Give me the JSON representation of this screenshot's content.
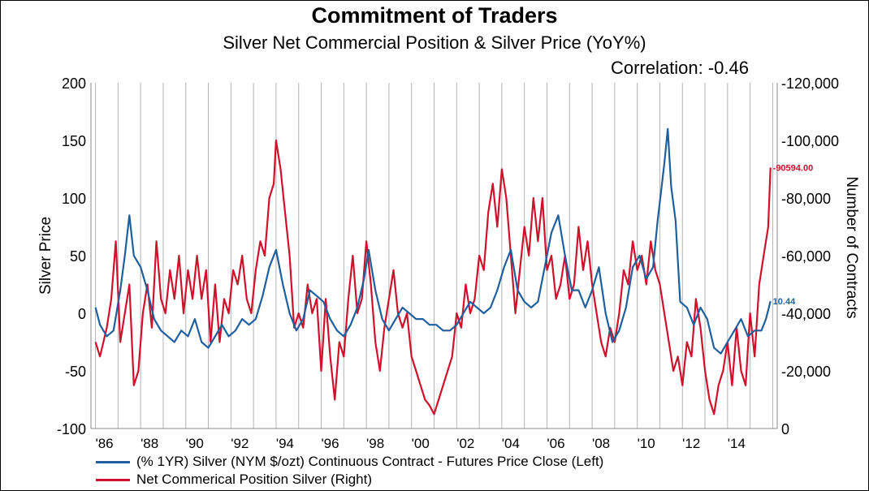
{
  "header": {
    "title": "Commitment of Traders",
    "subtitle": "Silver Net Commercial Position & Silver Price (YoY%)",
    "correlation": "Correlation: -0.46"
  },
  "chart_data": {
    "type": "line",
    "x_ticks": [
      "'86",
      "'88",
      "'90",
      "'92",
      "'94",
      "'96",
      "'98",
      "'00",
      "'02",
      "'04",
      "'06",
      "'08",
      "'10",
      "'12",
      "'14"
    ],
    "x_range": [
      1985.8,
      2016.2
    ],
    "y_left": {
      "label": "Silver Price",
      "min": -100,
      "max": 200,
      "ticks": [
        "-100",
        "-50",
        "0",
        "50",
        "100",
        "150",
        "200"
      ]
    },
    "y_right": {
      "label": "Number of Contracts",
      "min": 0,
      "max": -120000,
      "ticks": [
        "0",
        "-20,000",
        "-40,000",
        "-60,000",
        "-80,000",
        "-100,000",
        "-120,000"
      ]
    },
    "grid": "vertical",
    "series": [
      {
        "name": "(% 1YR) Silver (NYM $/ozt) Continuous Contract - Futures Price Close  (Left)",
        "axis": "left",
        "color": "#1f5f9e",
        "last_label": "10.44",
        "points": [
          [
            1986.0,
            5
          ],
          [
            1986.2,
            -10
          ],
          [
            1986.5,
            -20
          ],
          [
            1986.8,
            -15
          ],
          [
            1987.1,
            20
          ],
          [
            1987.3,
            50
          ],
          [
            1987.5,
            85
          ],
          [
            1987.7,
            50
          ],
          [
            1988.0,
            40
          ],
          [
            1988.3,
            20
          ],
          [
            1988.6,
            -5
          ],
          [
            1988.9,
            -15
          ],
          [
            1989.2,
            -20
          ],
          [
            1989.5,
            -25
          ],
          [
            1989.8,
            -15
          ],
          [
            1990.1,
            -20
          ],
          [
            1990.4,
            -5
          ],
          [
            1990.7,
            -25
          ],
          [
            1991.0,
            -30
          ],
          [
            1991.3,
            -20
          ],
          [
            1991.6,
            -10
          ],
          [
            1991.9,
            -20
          ],
          [
            1992.2,
            -15
          ],
          [
            1992.5,
            -5
          ],
          [
            1992.8,
            -10
          ],
          [
            1993.1,
            -5
          ],
          [
            1993.4,
            15
          ],
          [
            1993.7,
            40
          ],
          [
            1994.0,
            55
          ],
          [
            1994.3,
            25
          ],
          [
            1994.6,
            0
          ],
          [
            1994.9,
            -15
          ],
          [
            1995.2,
            -5
          ],
          [
            1995.5,
            20
          ],
          [
            1995.8,
            15
          ],
          [
            1996.1,
            10
          ],
          [
            1996.4,
            -5
          ],
          [
            1996.7,
            -15
          ],
          [
            1997.0,
            -20
          ],
          [
            1997.3,
            -10
          ],
          [
            1997.6,
            5
          ],
          [
            1997.9,
            30
          ],
          [
            1998.1,
            55
          ],
          [
            1998.4,
            20
          ],
          [
            1998.7,
            -5
          ],
          [
            1999.0,
            -15
          ],
          [
            1999.3,
            -5
          ],
          [
            1999.6,
            5
          ],
          [
            1999.9,
            0
          ],
          [
            2000.2,
            -5
          ],
          [
            2000.5,
            -5
          ],
          [
            2000.8,
            -10
          ],
          [
            2001.1,
            -10
          ],
          [
            2001.4,
            -15
          ],
          [
            2001.7,
            -15
          ],
          [
            2002.0,
            -10
          ],
          [
            2002.3,
            0
          ],
          [
            2002.6,
            10
          ],
          [
            2002.9,
            5
          ],
          [
            2003.2,
            0
          ],
          [
            2003.5,
            5
          ],
          [
            2003.8,
            20
          ],
          [
            2004.1,
            40
          ],
          [
            2004.4,
            55
          ],
          [
            2004.7,
            20
          ],
          [
            2005.0,
            10
          ],
          [
            2005.3,
            5
          ],
          [
            2005.6,
            10
          ],
          [
            2005.9,
            40
          ],
          [
            2006.2,
            70
          ],
          [
            2006.5,
            85
          ],
          [
            2006.8,
            50
          ],
          [
            2007.1,
            20
          ],
          [
            2007.4,
            20
          ],
          [
            2007.7,
            5
          ],
          [
            2008.0,
            20
          ],
          [
            2008.3,
            40
          ],
          [
            2008.6,
            0
          ],
          [
            2008.9,
            -25
          ],
          [
            2009.2,
            -15
          ],
          [
            2009.5,
            5
          ],
          [
            2009.8,
            40
          ],
          [
            2010.1,
            50
          ],
          [
            2010.4,
            30
          ],
          [
            2010.7,
            40
          ],
          [
            2010.9,
            80
          ],
          [
            2011.2,
            130
          ],
          [
            2011.35,
            160
          ],
          [
            2011.5,
            110
          ],
          [
            2011.7,
            80
          ],
          [
            2011.9,
            10
          ],
          [
            2012.2,
            5
          ],
          [
            2012.5,
            -10
          ],
          [
            2012.8,
            5
          ],
          [
            2013.1,
            -5
          ],
          [
            2013.4,
            -30
          ],
          [
            2013.7,
            -35
          ],
          [
            2014.0,
            -25
          ],
          [
            2014.3,
            -15
          ],
          [
            2014.6,
            -5
          ],
          [
            2014.9,
            -20
          ],
          [
            2015.2,
            -15
          ],
          [
            2015.5,
            -15
          ],
          [
            2015.7,
            -5
          ],
          [
            2015.9,
            10.44
          ]
        ]
      },
      {
        "name": "Net Commerical Position Silver (Right)",
        "axis": "right",
        "color": "#d0112b",
        "last_label": "-90594.00",
        "points": [
          [
            1986.0,
            -30000
          ],
          [
            1986.2,
            -25000
          ],
          [
            1986.5,
            -35000
          ],
          [
            1986.7,
            -45000
          ],
          [
            1986.9,
            -65000
          ],
          [
            1987.1,
            -30000
          ],
          [
            1987.3,
            -40000
          ],
          [
            1987.5,
            -50000
          ],
          [
            1987.7,
            -15000
          ],
          [
            1987.9,
            -20000
          ],
          [
            1988.1,
            -40000
          ],
          [
            1988.3,
            -50000
          ],
          [
            1988.5,
            -35000
          ],
          [
            1988.7,
            -65000
          ],
          [
            1988.9,
            -45000
          ],
          [
            1989.1,
            -40000
          ],
          [
            1989.3,
            -55000
          ],
          [
            1989.5,
            -45000
          ],
          [
            1989.7,
            -60000
          ],
          [
            1989.9,
            -40000
          ],
          [
            1990.1,
            -55000
          ],
          [
            1990.3,
            -45000
          ],
          [
            1990.5,
            -60000
          ],
          [
            1990.7,
            -45000
          ],
          [
            1990.9,
            -55000
          ],
          [
            1991.1,
            -30000
          ],
          [
            1991.3,
            -50000
          ],
          [
            1991.5,
            -30000
          ],
          [
            1991.7,
            -45000
          ],
          [
            1991.9,
            -40000
          ],
          [
            1992.1,
            -55000
          ],
          [
            1992.3,
            -50000
          ],
          [
            1992.5,
            -60000
          ],
          [
            1992.7,
            -45000
          ],
          [
            1992.9,
            -40000
          ],
          [
            1993.1,
            -55000
          ],
          [
            1993.3,
            -65000
          ],
          [
            1993.5,
            -60000
          ],
          [
            1993.7,
            -80000
          ],
          [
            1993.9,
            -85000
          ],
          [
            1994.0,
            -100000
          ],
          [
            1994.2,
            -90000
          ],
          [
            1994.4,
            -75000
          ],
          [
            1994.6,
            -60000
          ],
          [
            1994.8,
            -35000
          ],
          [
            1995.0,
            -40000
          ],
          [
            1995.2,
            -35000
          ],
          [
            1995.4,
            -50000
          ],
          [
            1995.6,
            -40000
          ],
          [
            1995.8,
            -45000
          ],
          [
            1996.0,
            -20000
          ],
          [
            1996.2,
            -45000
          ],
          [
            1996.4,
            -25000
          ],
          [
            1996.6,
            -10000
          ],
          [
            1996.8,
            -30000
          ],
          [
            1997.0,
            -25000
          ],
          [
            1997.2,
            -45000
          ],
          [
            1997.4,
            -60000
          ],
          [
            1997.6,
            -40000
          ],
          [
            1997.8,
            -45000
          ],
          [
            1998.0,
            -65000
          ],
          [
            1998.2,
            -50000
          ],
          [
            1998.4,
            -30000
          ],
          [
            1998.6,
            -20000
          ],
          [
            1998.8,
            -35000
          ],
          [
            1999.0,
            -45000
          ],
          [
            1999.2,
            -55000
          ],
          [
            1999.4,
            -40000
          ],
          [
            1999.6,
            -35000
          ],
          [
            1999.8,
            -40000
          ],
          [
            2000.0,
            -25000
          ],
          [
            2000.2,
            -20000
          ],
          [
            2000.4,
            -15000
          ],
          [
            2000.6,
            -10000
          ],
          [
            2000.8,
            -8000
          ],
          [
            2001.0,
            -5000
          ],
          [
            2001.2,
            -10000
          ],
          [
            2001.4,
            -15000
          ],
          [
            2001.6,
            -20000
          ],
          [
            2001.8,
            -25000
          ],
          [
            2002.0,
            -40000
          ],
          [
            2002.2,
            -35000
          ],
          [
            2002.4,
            -50000
          ],
          [
            2002.6,
            -40000
          ],
          [
            2002.8,
            -45000
          ],
          [
            2003.0,
            -60000
          ],
          [
            2003.2,
            -55000
          ],
          [
            2003.4,
            -75000
          ],
          [
            2003.6,
            -85000
          ],
          [
            2003.8,
            -70000
          ],
          [
            2004.0,
            -90000
          ],
          [
            2004.2,
            -80000
          ],
          [
            2004.4,
            -60000
          ],
          [
            2004.6,
            -40000
          ],
          [
            2004.8,
            -55000
          ],
          [
            2005.0,
            -70000
          ],
          [
            2005.2,
            -60000
          ],
          [
            2005.4,
            -80000
          ],
          [
            2005.6,
            -65000
          ],
          [
            2005.8,
            -80000
          ],
          [
            2006.0,
            -55000
          ],
          [
            2006.2,
            -60000
          ],
          [
            2006.4,
            -45000
          ],
          [
            2006.6,
            -50000
          ],
          [
            2006.8,
            -60000
          ],
          [
            2007.0,
            -45000
          ],
          [
            2007.2,
            -50000
          ],
          [
            2007.4,
            -70000
          ],
          [
            2007.6,
            -55000
          ],
          [
            2007.8,
            -65000
          ],
          [
            2008.0,
            -50000
          ],
          [
            2008.2,
            -40000
          ],
          [
            2008.4,
            -30000
          ],
          [
            2008.6,
            -25000
          ],
          [
            2008.8,
            -35000
          ],
          [
            2009.0,
            -30000
          ],
          [
            2009.2,
            -40000
          ],
          [
            2009.4,
            -55000
          ],
          [
            2009.6,
            -50000
          ],
          [
            2009.8,
            -65000
          ],
          [
            2010.0,
            -55000
          ],
          [
            2010.2,
            -60000
          ],
          [
            2010.4,
            -50000
          ],
          [
            2010.6,
            -65000
          ],
          [
            2010.8,
            -55000
          ],
          [
            2011.0,
            -50000
          ],
          [
            2011.2,
            -40000
          ],
          [
            2011.4,
            -30000
          ],
          [
            2011.6,
            -20000
          ],
          [
            2011.8,
            -25000
          ],
          [
            2012.0,
            -15000
          ],
          [
            2012.2,
            -30000
          ],
          [
            2012.4,
            -25000
          ],
          [
            2012.6,
            -45000
          ],
          [
            2012.8,
            -35000
          ],
          [
            2013.0,
            -20000
          ],
          [
            2013.2,
            -10000
          ],
          [
            2013.4,
            -5000
          ],
          [
            2013.6,
            -15000
          ],
          [
            2013.8,
            -20000
          ],
          [
            2014.0,
            -30000
          ],
          [
            2014.2,
            -15000
          ],
          [
            2014.4,
            -35000
          ],
          [
            2014.6,
            -20000
          ],
          [
            2014.8,
            -15000
          ],
          [
            2015.0,
            -40000
          ],
          [
            2015.2,
            -25000
          ],
          [
            2015.4,
            -50000
          ],
          [
            2015.6,
            -60000
          ],
          [
            2015.8,
            -70000
          ],
          [
            2015.9,
            -90594
          ]
        ]
      }
    ]
  }
}
